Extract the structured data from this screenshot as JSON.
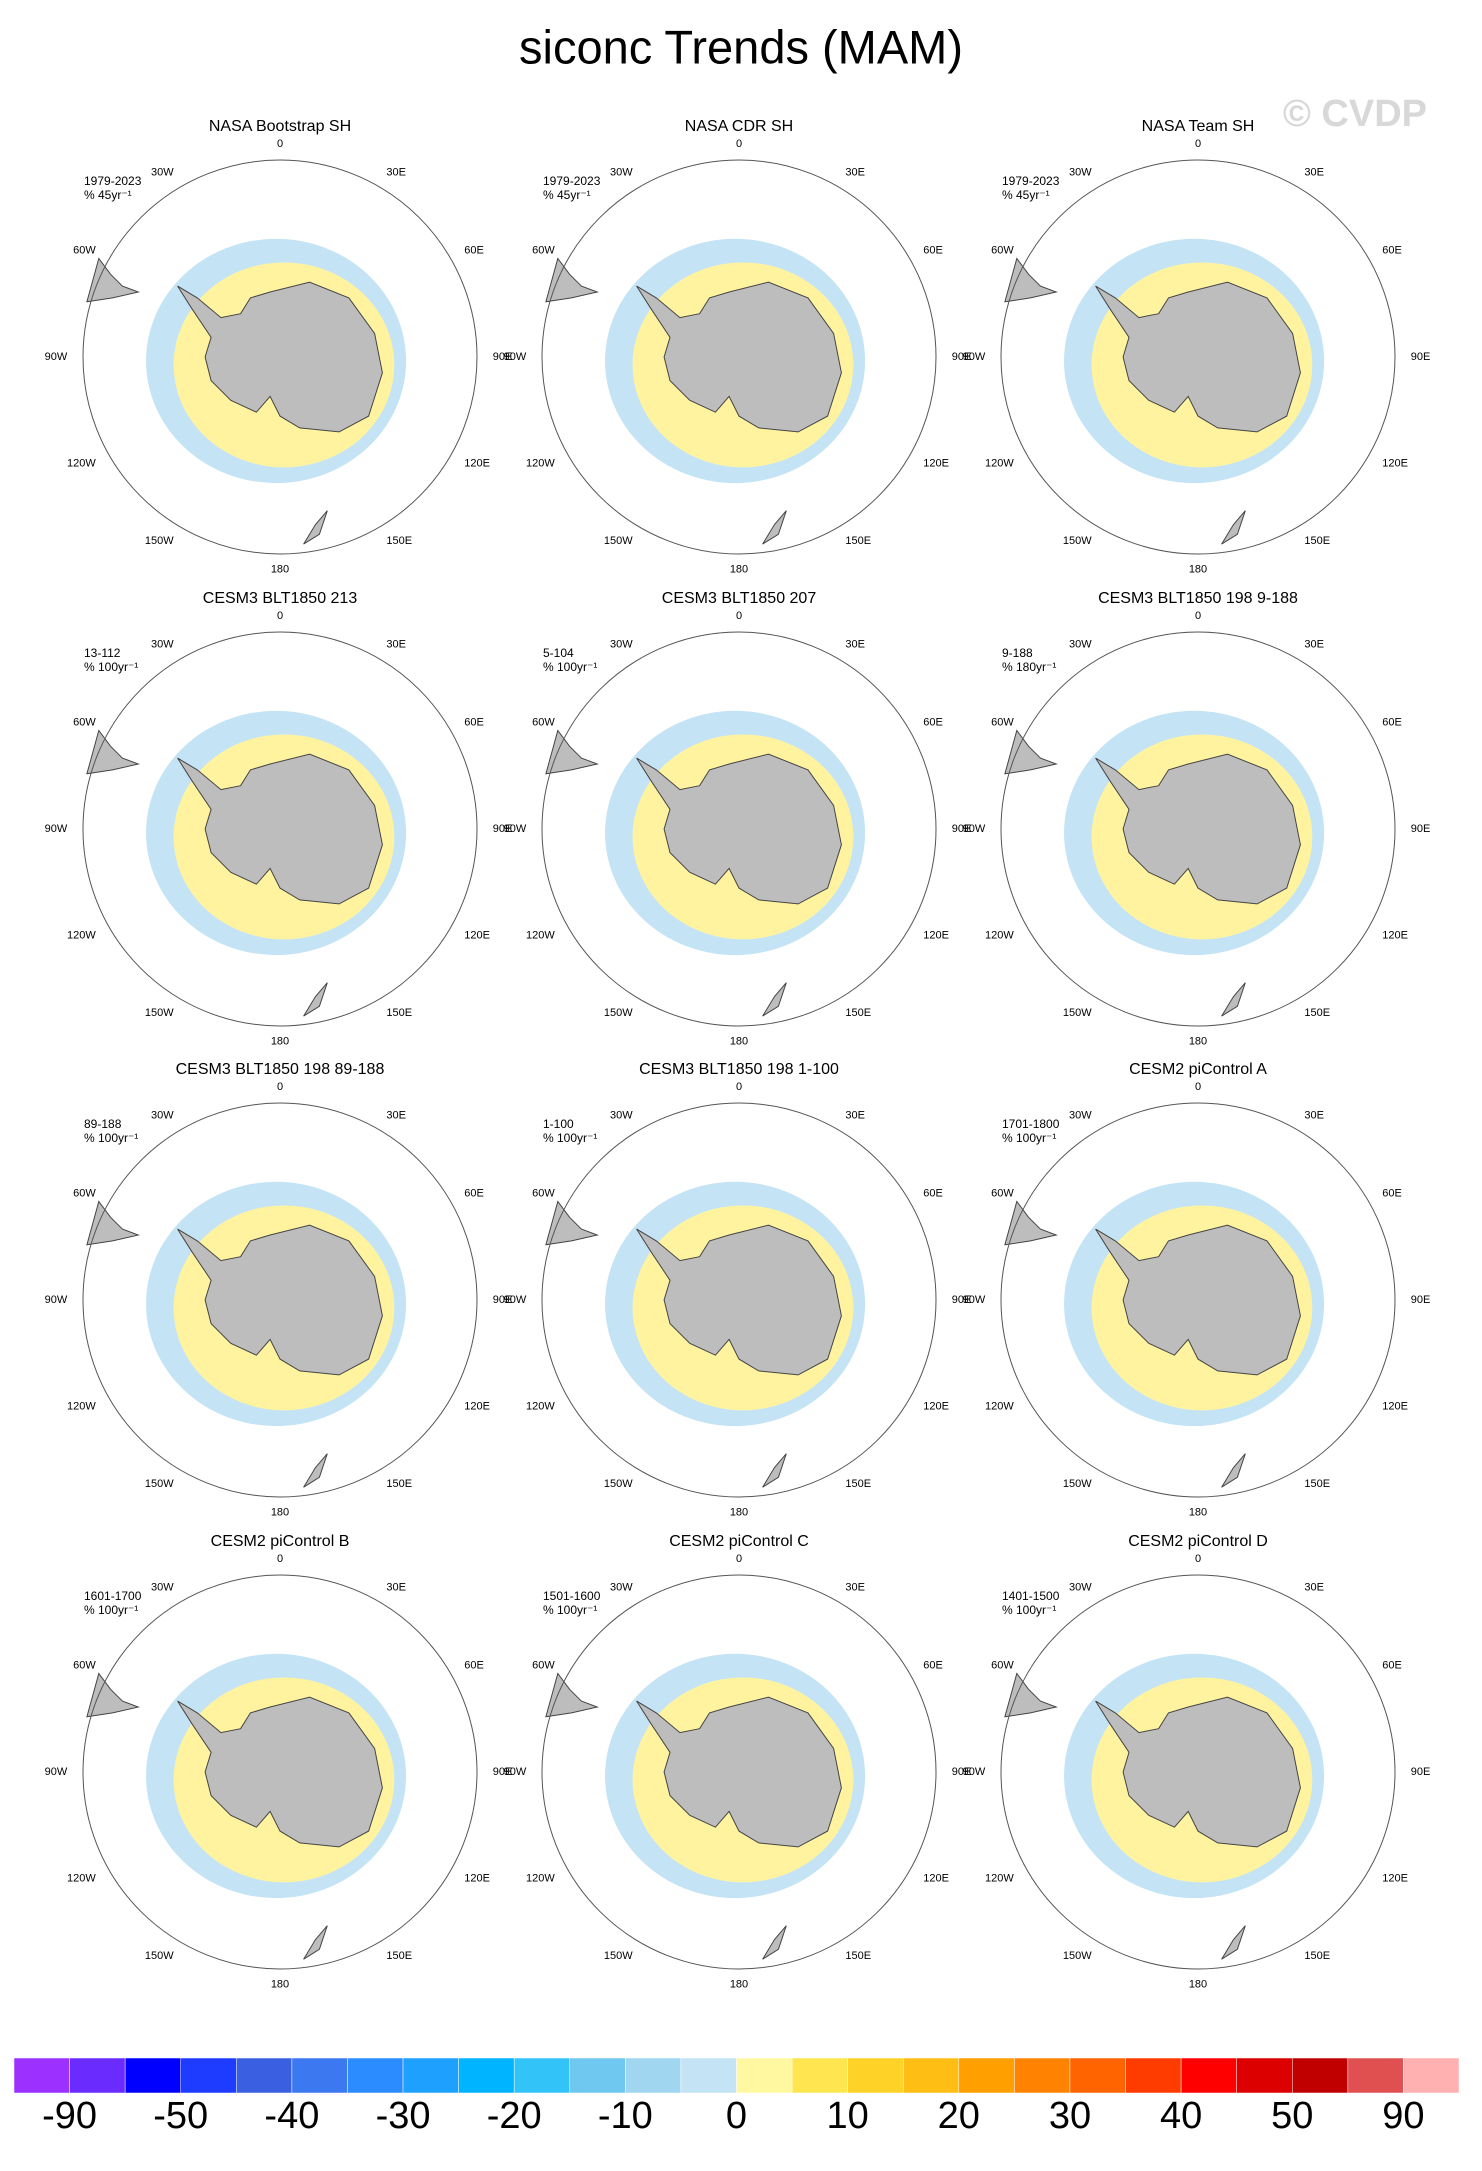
{
  "title": "siconc Trends (MAM)",
  "watermark": "© CVDP",
  "longitude_labels": [
    "0",
    "30E",
    "60E",
    "90E",
    "120E",
    "150E",
    "180",
    "150W",
    "120W",
    "90W",
    "60W",
    "30W"
  ],
  "panels": [
    {
      "title": "NASA Bootstrap SH",
      "period": "1979-2023",
      "units": "% 45yr⁻¹"
    },
    {
      "title": "NASA CDR SH",
      "period": "1979-2023",
      "units": "% 45yr⁻¹"
    },
    {
      "title": "NASA Team SH",
      "period": "1979-2023",
      "units": "% 45yr⁻¹"
    },
    {
      "title": "CESM3 BLT1850 213",
      "period": "13-112",
      "units": "% 100yr⁻¹"
    },
    {
      "title": "CESM3 BLT1850 207",
      "period": "5-104",
      "units": "% 100yr⁻¹"
    },
    {
      "title": "CESM3 BLT1850 198 9-188",
      "period": "9-188",
      "units": "% 180yr⁻¹"
    },
    {
      "title": "CESM3 BLT1850 198 89-188",
      "period": "89-188",
      "units": "% 100yr⁻¹"
    },
    {
      "title": "CESM3 BLT1850 198 1-100",
      "period": "1-100",
      "units": "% 100yr⁻¹"
    },
    {
      "title": "CESM2 piControl A",
      "period": "1701-1800",
      "units": "% 100yr⁻¹"
    },
    {
      "title": "CESM2 piControl B",
      "period": "1601-1700",
      "units": "% 100yr⁻¹"
    },
    {
      "title": "CESM2 piControl C",
      "period": "1501-1600",
      "units": "% 100yr⁻¹"
    },
    {
      "title": "CESM2 piControl D",
      "period": "1401-1500",
      "units": "% 100yr⁻¹"
    }
  ],
  "colorbar": {
    "colors": [
      "#9b30ff",
      "#6a2bff",
      "#0000ff",
      "#1e3cff",
      "#3a5fe0",
      "#3c78f0",
      "#2a8cff",
      "#1ea0ff",
      "#00b4ff",
      "#32c4f8",
      "#6ec8f0",
      "#a0d6f0",
      "#c4e4f6",
      "#fff8a0",
      "#ffe650",
      "#ffd228",
      "#ffbe14",
      "#ffa000",
      "#ff8200",
      "#ff6400",
      "#ff3c00",
      "#ff0000",
      "#dc0000",
      "#c00000",
      "#e05050",
      "#ffb0b0"
    ],
    "labels": [
      -90,
      -50,
      -40,
      -30,
      -20,
      -10,
      0,
      10,
      20,
      30,
      40,
      50,
      90
    ]
  }
}
